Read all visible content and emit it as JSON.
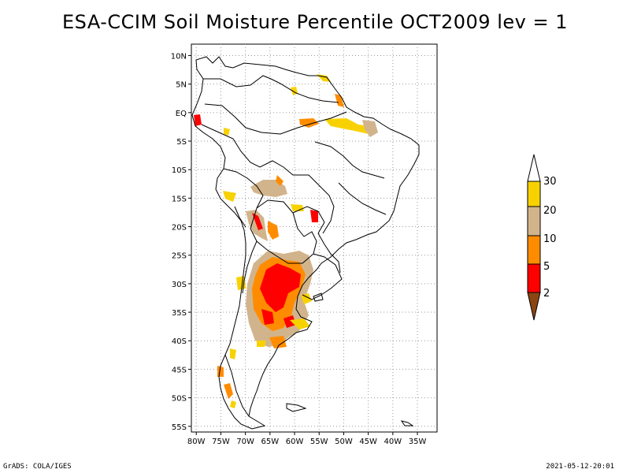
{
  "title": "ESA-CCIM Soil Moisture Percentile OCT2009 lev = 1",
  "footer": {
    "left": "GrADS: COLA/IGES",
    "right": "2021-05-12-20:01"
  },
  "map": {
    "lon_range": [
      -81,
      -31
    ],
    "lat_range": [
      -56,
      12
    ],
    "lat_ticks": [
      {
        "value": 10,
        "label": "10N"
      },
      {
        "value": 5,
        "label": "5N"
      },
      {
        "value": 0,
        "label": "EQ"
      },
      {
        "value": -5,
        "label": "5S"
      },
      {
        "value": -10,
        "label": "10S"
      },
      {
        "value": -15,
        "label": "15S"
      },
      {
        "value": -20,
        "label": "20S"
      },
      {
        "value": -25,
        "label": "25S"
      },
      {
        "value": -30,
        "label": "30S"
      },
      {
        "value": -35,
        "label": "35S"
      },
      {
        "value": -40,
        "label": "40S"
      },
      {
        "value": -45,
        "label": "45S"
      },
      {
        "value": -50,
        "label": "50S"
      },
      {
        "value": -55,
        "label": "55S"
      }
    ],
    "lon_ticks": [
      {
        "value": -80,
        "label": "80W"
      },
      {
        "value": -75,
        "label": "75W"
      },
      {
        "value": -70,
        "label": "70W"
      },
      {
        "value": -65,
        "label": "65W"
      },
      {
        "value": -60,
        "label": "60W"
      },
      {
        "value": -55,
        "label": "55W"
      },
      {
        "value": -50,
        "label": "50W"
      },
      {
        "value": -45,
        "label": "45W"
      },
      {
        "value": -40,
        "label": "40W"
      },
      {
        "value": -35,
        "label": "35W"
      }
    ]
  },
  "colorbar": {
    "labels": [
      "30",
      "20",
      "10",
      "5",
      "2"
    ],
    "colors": [
      "#ffffff",
      "#f8d200",
      "#d2b48c",
      "#ff8c00",
      "#ff0000",
      "#8b4513"
    ]
  }
}
